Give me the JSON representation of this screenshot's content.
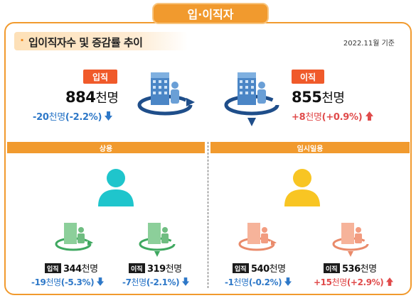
{
  "header_tab": "입·이직자",
  "section_title": "입이직자수 및 증감률 추이",
  "date_note": "2022.11월 기준",
  "colors": {
    "accent": "#f19a2e",
    "up": "#e04b4b",
    "down": "#2e78c8",
    "badge": "#f05a2a"
  },
  "total": {
    "hire": {
      "badge": "입직",
      "number": "884",
      "unit": "천명",
      "change": "-20",
      "change_unit": "천명",
      "pct": "(-2.2%)",
      "direction": "down"
    },
    "sep": {
      "badge": "이직",
      "number": "855",
      "unit": "천명",
      "change": "+8",
      "change_unit": "천명",
      "pct": "(+0.9%)",
      "direction": "up"
    }
  },
  "regular": {
    "label": "상용",
    "hire": {
      "badge": "입직",
      "number": "344",
      "unit": "천명",
      "change": "-19",
      "change_unit": "천명",
      "pct": "(-5.3%)",
      "direction": "down"
    },
    "sep": {
      "badge": "이직",
      "number": "319",
      "unit": "천명",
      "change": "-7",
      "change_unit": "천명",
      "pct": "(-2.1%)",
      "direction": "down"
    }
  },
  "temp": {
    "label": "임시일용",
    "hire": {
      "badge": "입직",
      "number": "540",
      "unit": "천명",
      "change": "-1",
      "change_unit": "천명",
      "pct": "(-0.2%)",
      "direction": "down"
    },
    "sep": {
      "badge": "이직",
      "number": "536",
      "unit": "천명",
      "change": "+15",
      "change_unit": "천명",
      "pct": "(+2.9%)",
      "direction": "up"
    }
  }
}
